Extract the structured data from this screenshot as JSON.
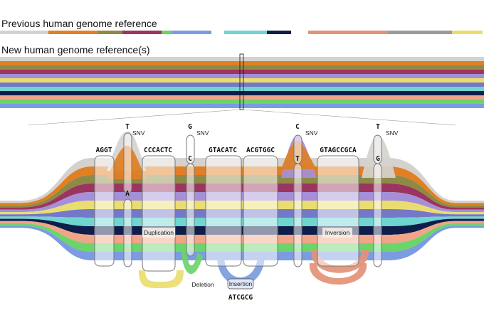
{
  "headings": {
    "previous": "Previous human genome reference",
    "new": "New human genome reference(s)"
  },
  "palette": {
    "colors": [
      "#d4d2cf",
      "#e07f24",
      "#8e8a46",
      "#9b3560",
      "#a58fd9",
      "#e9dd6f",
      "#7478c9",
      "#6fd5d0",
      "#0f1d4a",
      "#f1a488",
      "#6bd46a",
      "#7c9be0"
    ]
  },
  "previous_reference": {
    "segments": [
      {
        "color": "#d4d2cf"
      },
      {
        "color": "#e07f24"
      },
      {
        "color": "#8e8a46"
      },
      {
        "color": "#9b3560"
      },
      {
        "color": "#6bd46a"
      },
      {
        "color": "#7c9be0"
      },
      {
        "color": "#ffffff"
      },
      {
        "color": "#6fd5d0"
      },
      {
        "color": "#0f1d4a"
      },
      {
        "color": "#ffffff"
      },
      {
        "color": "#e39277"
      },
      {
        "color": "#9b9b9b"
      },
      {
        "color": "#e9dd6f"
      }
    ]
  },
  "sequences": {
    "aggt": "AGGT",
    "cccactc": "CCCACTC",
    "gtacatc": "GTACATC",
    "acgtggc": "ACGTGGC",
    "gtagccgca": "GTAGCCGCA",
    "insertion_seq": "ATCGCG"
  },
  "snvs": [
    {
      "top": "T",
      "bottom": "A",
      "label": "SNV"
    },
    {
      "top": "G",
      "bottom": "C",
      "label": "SNV"
    },
    {
      "top": "C",
      "bottom": "T",
      "label": "SNV"
    },
    {
      "top": "T",
      "bottom": "G",
      "label": "SNV"
    }
  ],
  "variants": {
    "duplication": "Duplication",
    "deletion": "Deletion",
    "insertion": "Insertion",
    "inversion": "Inversion"
  }
}
